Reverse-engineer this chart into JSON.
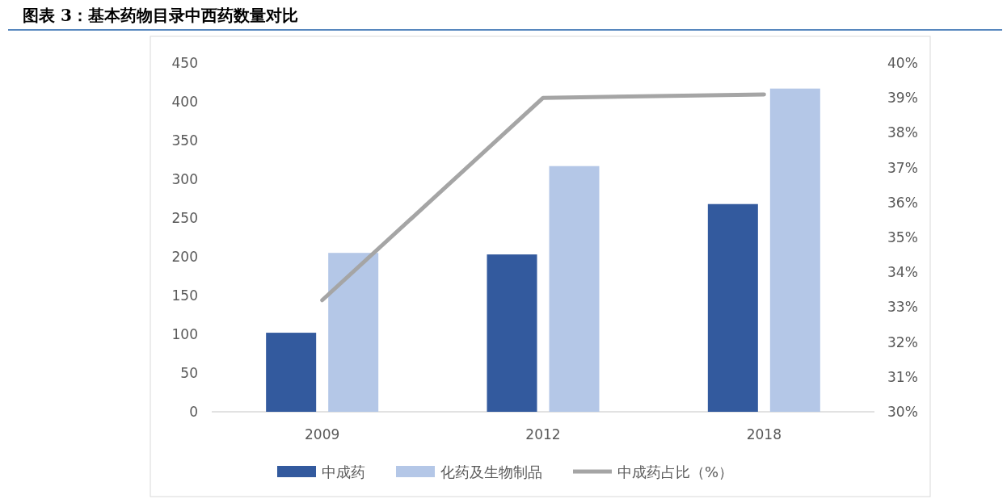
{
  "chart_data": {
    "type": "bar",
    "title": "图表 3：基本药物目录中西药数量对比",
    "categories": [
      "2009",
      "2012",
      "2018"
    ],
    "series": [
      {
        "name": "中成药",
        "color": "#335a9e",
        "values": [
          102,
          203,
          268
        ]
      },
      {
        "name": "化药及生物制品",
        "color": "#b4c7e7",
        "values": [
          205,
          317,
          417
        ]
      },
      {
        "name": "中成药占比（%）",
        "type": "line",
        "axis": "y2",
        "color": "#a5a5a5",
        "values": [
          33.2,
          39.0,
          39.1
        ]
      }
    ],
    "ylim": [
      0,
      450
    ],
    "yticks": [
      0,
      50,
      100,
      150,
      200,
      250,
      300,
      350,
      400,
      450
    ],
    "y2lim": [
      30,
      40
    ],
    "y2ticks": [
      {
        "value": 30,
        "label": "30%"
      },
      {
        "value": 31,
        "label": "31%"
      },
      {
        "value": 32,
        "label": "32%"
      },
      {
        "value": 33,
        "label": "33%"
      },
      {
        "value": 34,
        "label": "34%"
      },
      {
        "value": 35,
        "label": "35%"
      },
      {
        "value": 36,
        "label": "36%"
      },
      {
        "value": 37,
        "label": "37%"
      },
      {
        "value": 38,
        "label": "38%"
      },
      {
        "value": 39,
        "label": "39%"
      },
      {
        "value": 40,
        "label": "40%"
      }
    ],
    "legend": "bottom",
    "grid": false
  }
}
